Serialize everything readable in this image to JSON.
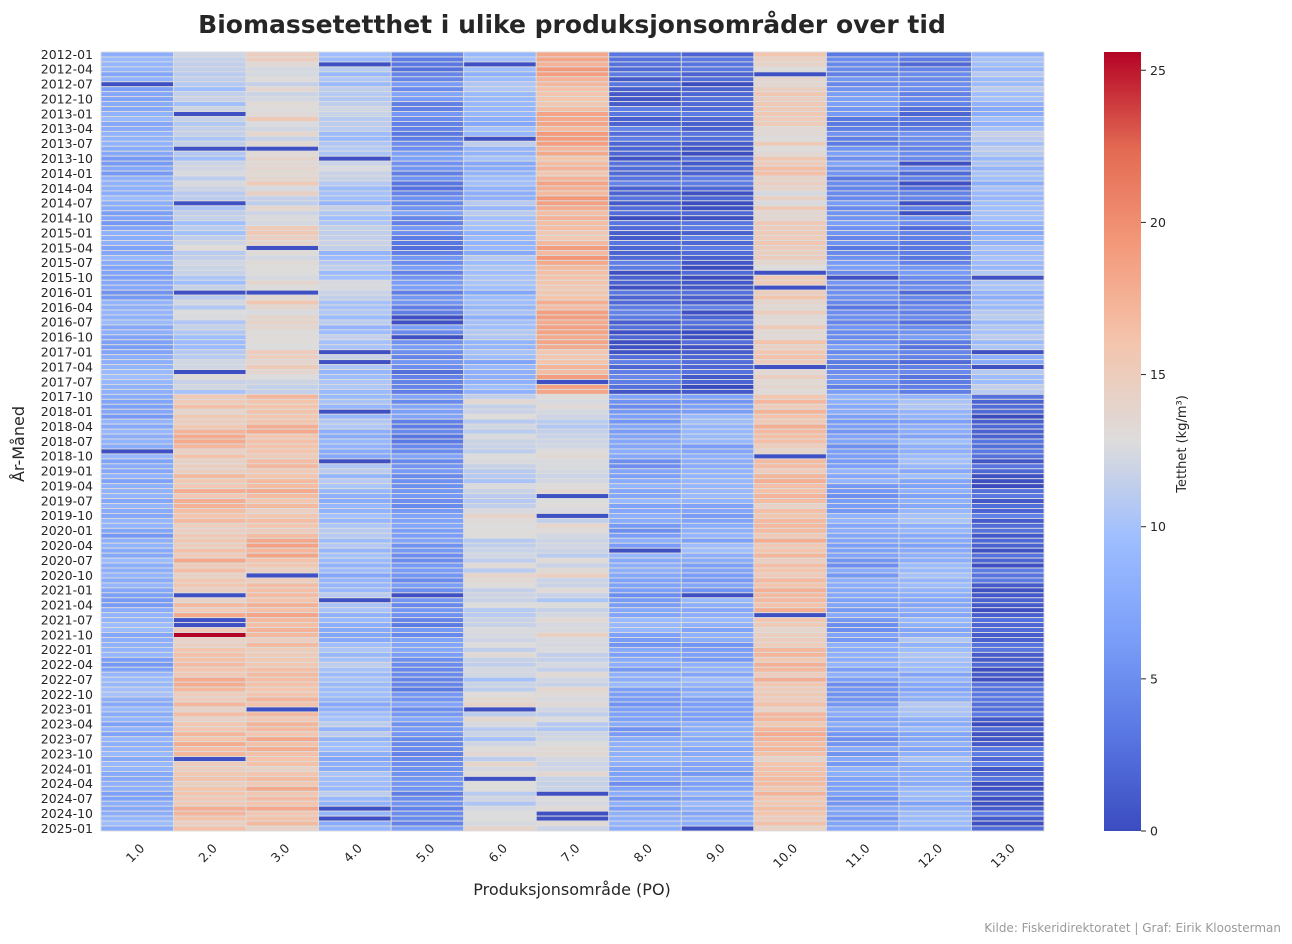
{
  "chart_data": {
    "type": "heatmap",
    "title": "Biomassetetthet i ulike produksjonsområder over tid",
    "xlabel": "Produksjonsområde (PO)",
    "ylabel": "År-Måned",
    "colorbar_label": "Tetthet (kg/m³)",
    "colormap": "coolwarm",
    "vmin": 0,
    "vmax": 25.6,
    "colorbar_ticks": [
      0,
      5,
      10,
      15,
      20,
      25
    ],
    "columns": [
      "1.0",
      "2.0",
      "3.0",
      "4.0",
      "5.0",
      "6.0",
      "7.0",
      "8.0",
      "9.0",
      "10.0",
      "11.0",
      "12.0",
      "13.0"
    ],
    "start_year": 2012,
    "start_month": 1,
    "row_count": 157,
    "y_tick_labels": [
      "2012-01",
      "2012-04",
      "2012-07",
      "2012-10",
      "2013-01",
      "2013-04",
      "2013-07",
      "2013-10",
      "2014-01",
      "2014-04",
      "2014-07",
      "2014-10",
      "2015-01",
      "2015-04",
      "2015-07",
      "2015-10",
      "2016-01",
      "2016-04",
      "2016-07",
      "2016-10",
      "2017-01",
      "2017-04",
      "2017-07",
      "2017-10",
      "2018-01",
      "2018-04",
      "2018-07",
      "2018-10",
      "2019-01",
      "2019-04",
      "2019-07",
      "2019-10",
      "2020-01",
      "2020-04",
      "2020-07",
      "2020-10",
      "2021-01",
      "2021-04",
      "2021-07",
      "2021-10",
      "2022-01",
      "2022-04",
      "2022-07",
      "2022-10",
      "2023-01",
      "2023-04",
      "2023-07",
      "2023-10",
      "2024-01",
      "2024-04",
      "2024-07",
      "2024-10",
      "2025-01"
    ],
    "period_levels": {
      "periods": [
        "2012-01 – 2017-09",
        "2017-10 – 2025-01"
      ],
      "values": [
        [
          7.5,
          8.0
        ],
        [
          11.0,
          16.0
        ],
        [
          13.5,
          16.5
        ],
        [
          10.5,
          9.0
        ],
        [
          4.8,
          5.2
        ],
        [
          9.0,
          12.0
        ],
        [
          17.5,
          12.5
        ],
        [
          2.3,
          7.0
        ],
        [
          1.8,
          7.5
        ],
        [
          14.5,
          16.0
        ],
        [
          5.0,
          7.0
        ],
        [
          4.0,
          8.5
        ],
        [
          9.5,
          1.8
        ]
      ]
    },
    "notable_cells": [
      {
        "row_label": "2021-10",
        "column": "2.0",
        "value": 25.6
      }
    ]
  },
  "source_note": "Kilde: Fiskeridirektoratet | Graf: Eirik Kloosterman"
}
